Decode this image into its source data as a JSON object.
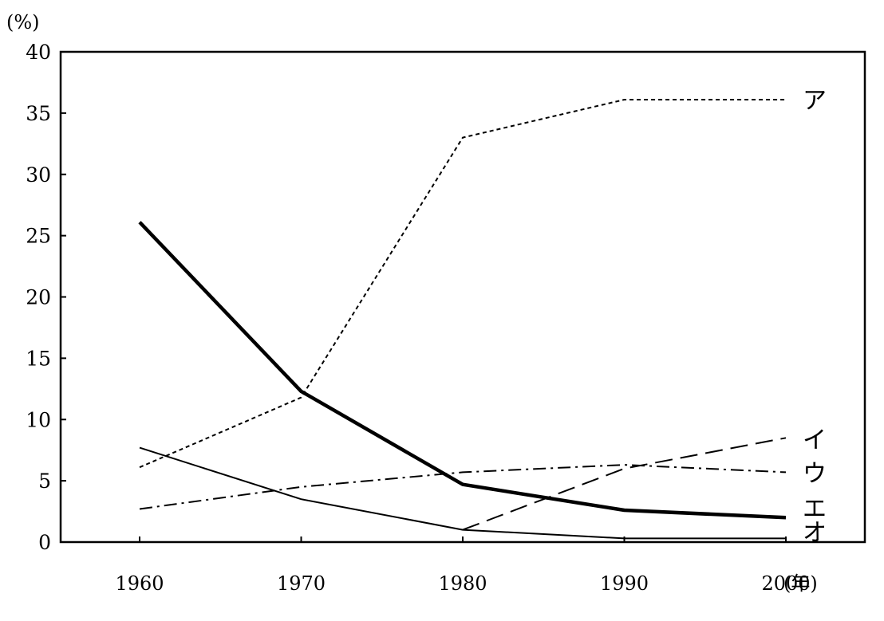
{
  "chart_data": {
    "type": "line",
    "title": "",
    "xlabel": "",
    "ylabel": "",
    "y_unit": "(%)",
    "x_unit": "(年)",
    "x": [
      1960,
      1970,
      1980,
      1990,
      2000
    ],
    "x_ticks": [
      "1960",
      "1970",
      "1980",
      "1990",
      "2000"
    ],
    "y_ticks": [
      "0",
      "5",
      "10",
      "15",
      "20",
      "25",
      "30",
      "35",
      "40"
    ],
    "xlim": [
      1955,
      2005
    ],
    "ylim": [
      0,
      40
    ],
    "grid": false,
    "legend": "none",
    "series": [
      {
        "label": "ア",
        "style": "dotted",
        "values": [
          6.1,
          11.8,
          33.0,
          36.1,
          36.1
        ]
      },
      {
        "label": "イ",
        "style": "dashed",
        "values": [
          null,
          null,
          1.0,
          6.0,
          8.5
        ]
      },
      {
        "label": "ウ",
        "style": "dash-dot",
        "values": [
          2.7,
          4.5,
          5.7,
          6.3,
          5.7
        ]
      },
      {
        "label": "エ",
        "style": "solid-bold",
        "values": [
          26.1,
          12.3,
          4.7,
          2.6,
          2.0
        ]
      },
      {
        "label": "オ",
        "style": "solid",
        "values": [
          7.7,
          3.5,
          1.0,
          0.3,
          0.3
        ]
      }
    ]
  }
}
